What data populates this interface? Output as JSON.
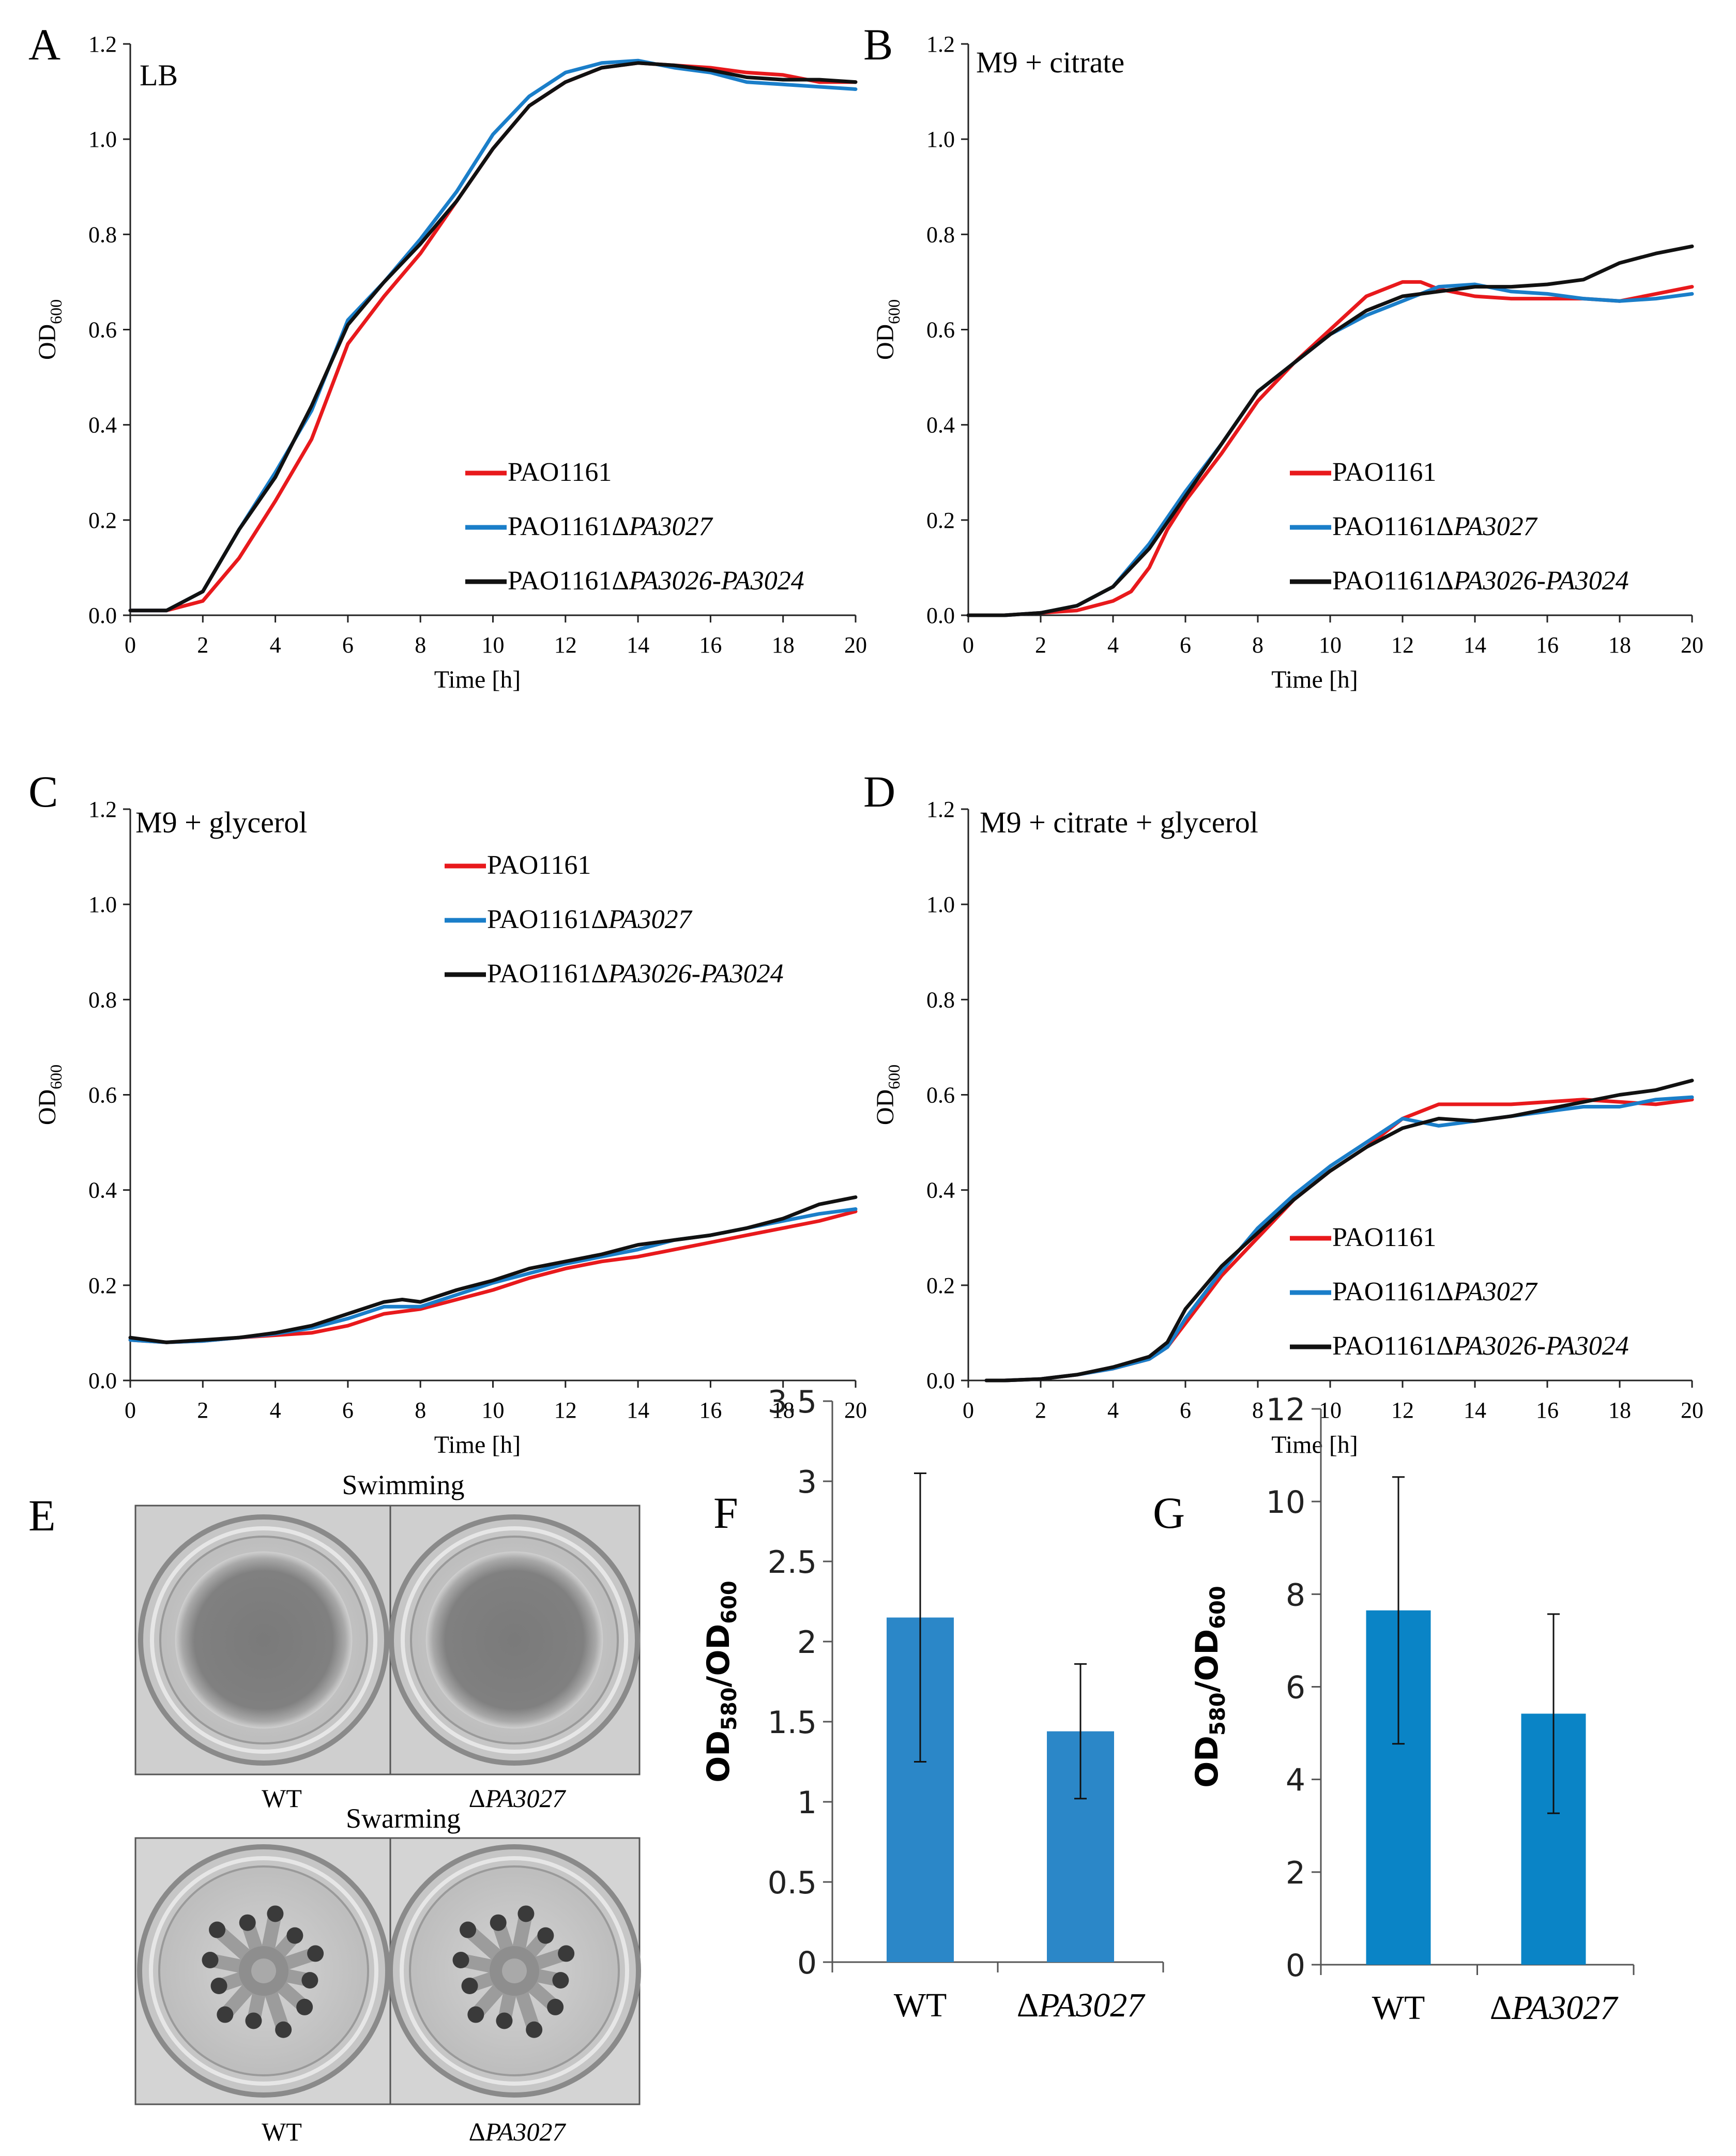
{
  "chart_data": [
    {
      "panel": "A",
      "type": "line",
      "title": "LB",
      "xlabel": "Time [h]",
      "ylabel": "OD",
      "ylabel_sub": "600",
      "xlim": [
        0,
        20
      ],
      "ylim": [
        0,
        1.2
      ],
      "xticks": [
        0,
        2,
        4,
        6,
        8,
        10,
        12,
        14,
        16,
        18,
        20
      ],
      "yticks": [
        0,
        0.2,
        0.4,
        0.6,
        0.8,
        1.0,
        1.2
      ],
      "yticklabels": [
        "0.0",
        "0.2",
        "0.4",
        "0.6",
        "0.8",
        "1.0",
        "1.2"
      ],
      "legend": "bottom-right",
      "series": [
        {
          "name": "PAO1161",
          "suffix": "",
          "color": "#e8191c",
          "x": [
            0,
            1,
            2,
            3,
            4,
            5,
            6,
            7,
            8,
            9,
            10,
            11,
            12,
            13,
            14,
            15,
            16,
            17,
            18,
            19,
            20
          ],
          "y": [
            0.01,
            0.01,
            0.03,
            0.12,
            0.24,
            0.37,
            0.57,
            0.67,
            0.76,
            0.87,
            0.98,
            1.07,
            1.12,
            1.15,
            1.16,
            1.155,
            1.15,
            1.14,
            1.135,
            1.12,
            1.12
          ]
        },
        {
          "name": "PAO1161Δ",
          "suffix": "PA3027",
          "color": "#1a7ec9",
          "x": [
            0,
            1,
            2,
            3,
            4,
            5,
            6,
            7,
            8,
            9,
            10,
            11,
            12,
            13,
            14,
            15,
            16,
            17,
            18,
            19,
            20
          ],
          "y": [
            0.01,
            0.01,
            0.05,
            0.18,
            0.3,
            0.43,
            0.62,
            0.7,
            0.79,
            0.89,
            1.01,
            1.09,
            1.14,
            1.16,
            1.165,
            1.15,
            1.14,
            1.12,
            1.115,
            1.11,
            1.105
          ]
        },
        {
          "name": "PAO1161Δ",
          "suffix": "PA3026-PA3024",
          "color": "#111111",
          "x": [
            0,
            1,
            2,
            3,
            4,
            5,
            6,
            7,
            8,
            9,
            10,
            11,
            12,
            13,
            14,
            15,
            16,
            17,
            18,
            19,
            20
          ],
          "y": [
            0.01,
            0.01,
            0.05,
            0.18,
            0.29,
            0.44,
            0.61,
            0.7,
            0.78,
            0.87,
            0.98,
            1.07,
            1.12,
            1.15,
            1.16,
            1.155,
            1.145,
            1.13,
            1.125,
            1.125,
            1.12
          ]
        }
      ]
    },
    {
      "panel": "B",
      "type": "line",
      "title": "M9 + citrate",
      "xlabel": "Time [h]",
      "ylabel": "OD",
      "ylabel_sub": "600",
      "xlim": [
        0,
        20
      ],
      "ylim": [
        0,
        1.2
      ],
      "xticks": [
        0,
        2,
        4,
        6,
        8,
        10,
        12,
        14,
        16,
        18,
        20
      ],
      "yticks": [
        0,
        0.2,
        0.4,
        0.6,
        0.8,
        1.0,
        1.2
      ],
      "yticklabels": [
        "0.0",
        "0.2",
        "0.4",
        "0.6",
        "0.8",
        "1.0",
        "1.2"
      ],
      "legend": "bottom-right",
      "series": [
        {
          "name": "PAO1161",
          "suffix": "",
          "color": "#e8191c",
          "x": [
            0,
            1,
            2,
            3,
            4,
            4.5,
            5,
            5.5,
            6,
            7,
            8,
            9,
            10,
            11,
            12,
            12.5,
            13,
            14,
            15,
            16,
            17,
            18,
            19,
            20
          ],
          "y": [
            0.0,
            0.0,
            0.005,
            0.01,
            0.03,
            0.05,
            0.1,
            0.18,
            0.24,
            0.34,
            0.45,
            0.53,
            0.6,
            0.67,
            0.7,
            0.7,
            0.685,
            0.67,
            0.665,
            0.665,
            0.665,
            0.66,
            0.675,
            0.69
          ]
        },
        {
          "name": "PAO1161Δ",
          "suffix": "PA3027",
          "color": "#1a7ec9",
          "x": [
            0,
            1,
            2,
            3,
            4,
            5,
            6,
            7,
            8,
            9,
            10,
            11,
            12,
            13,
            14,
            15,
            16,
            17,
            18,
            19,
            20
          ],
          "y": [
            0.0,
            0.0,
            0.005,
            0.02,
            0.06,
            0.15,
            0.26,
            0.36,
            0.47,
            0.53,
            0.59,
            0.63,
            0.66,
            0.69,
            0.695,
            0.68,
            0.675,
            0.665,
            0.66,
            0.665,
            0.675
          ]
        },
        {
          "name": "PAO1161Δ",
          "suffix": "PA3026-PA3024",
          "color": "#111111",
          "x": [
            0,
            1,
            2,
            3,
            4,
            5,
            6,
            7,
            8,
            9,
            10,
            11,
            12,
            13,
            14,
            15,
            16,
            17,
            18,
            19,
            20
          ],
          "y": [
            0.0,
            0.0,
            0.005,
            0.02,
            0.06,
            0.14,
            0.25,
            0.36,
            0.47,
            0.53,
            0.59,
            0.64,
            0.67,
            0.68,
            0.69,
            0.69,
            0.695,
            0.705,
            0.74,
            0.76,
            0.775
          ]
        }
      ]
    },
    {
      "panel": "C",
      "type": "line",
      "title": "M9 + glycerol",
      "xlabel": "Time [h]",
      "ylabel": "OD",
      "ylabel_sub": "600",
      "xlim": [
        0,
        20
      ],
      "ylim": [
        0,
        1.2
      ],
      "xticks": [
        0,
        2,
        4,
        6,
        8,
        10,
        12,
        14,
        16,
        18,
        20
      ],
      "yticks": [
        0,
        0.2,
        0.4,
        0.6,
        0.8,
        1.0,
        1.2
      ],
      "yticklabels": [
        "0.0",
        "0.2",
        "0.4",
        "0.6",
        "0.8",
        "1.0",
        "1.2"
      ],
      "legend": "top-right",
      "series": [
        {
          "name": "PAO1161",
          "suffix": "",
          "color": "#e8191c",
          "x": [
            0,
            1,
            2,
            3,
            4,
            5,
            6,
            7,
            8,
            9,
            10,
            11,
            12,
            13,
            14,
            15,
            16,
            17,
            18,
            19,
            20
          ],
          "y": [
            0.085,
            0.08,
            0.083,
            0.09,
            0.095,
            0.1,
            0.115,
            0.14,
            0.15,
            0.17,
            0.19,
            0.215,
            0.235,
            0.25,
            0.26,
            0.275,
            0.29,
            0.305,
            0.32,
            0.335,
            0.355
          ]
        },
        {
          "name": "PAO1161Δ",
          "suffix": "PA3027",
          "color": "#1a7ec9",
          "x": [
            0,
            1,
            2,
            3,
            4,
            5,
            6,
            7,
            8,
            9,
            10,
            11,
            12,
            13,
            14,
            15,
            16,
            17,
            18,
            19,
            20
          ],
          "y": [
            0.085,
            0.08,
            0.083,
            0.09,
            0.098,
            0.11,
            0.13,
            0.155,
            0.155,
            0.18,
            0.205,
            0.225,
            0.245,
            0.26,
            0.275,
            0.295,
            0.305,
            0.32,
            0.335,
            0.35,
            0.36
          ]
        },
        {
          "name": "PAO1161Δ",
          "suffix": "PA3026-PA3024",
          "color": "#111111",
          "x": [
            0,
            1,
            2,
            3,
            4,
            5,
            6,
            7,
            7.5,
            8,
            9,
            10,
            11,
            12,
            13,
            14,
            15,
            16,
            17,
            18,
            19,
            20
          ],
          "y": [
            0.09,
            0.08,
            0.085,
            0.09,
            0.1,
            0.115,
            0.14,
            0.165,
            0.17,
            0.165,
            0.19,
            0.21,
            0.235,
            0.25,
            0.265,
            0.285,
            0.295,
            0.305,
            0.32,
            0.34,
            0.37,
            0.385
          ]
        }
      ]
    },
    {
      "panel": "D",
      "type": "line",
      "title": "M9 + citrate + glycerol",
      "xlabel": "Time [h]",
      "ylabel": "OD",
      "ylabel_sub": "600",
      "xlim": [
        0,
        20
      ],
      "ylim": [
        0,
        1.2
      ],
      "xticks": [
        0,
        2,
        4,
        6,
        8,
        10,
        12,
        14,
        16,
        18,
        20
      ],
      "yticks": [
        0,
        0.2,
        0.4,
        0.6,
        0.8,
        1.0,
        1.2
      ],
      "yticklabels": [
        "0.0",
        "0.2",
        "0.4",
        "0.6",
        "0.8",
        "1.0",
        "1.2"
      ],
      "legend": "bottom-right",
      "series": [
        {
          "name": "PAO1161",
          "suffix": "",
          "color": "#e8191c",
          "x": [
            0.5,
            1,
            2,
            3,
            4,
            5,
            5.5,
            6,
            7,
            8,
            9,
            10,
            11,
            12,
            13,
            14,
            15,
            16,
            17,
            18,
            19,
            20
          ],
          "y": [
            0.0,
            0.0,
            0.003,
            0.012,
            0.025,
            0.045,
            0.07,
            0.12,
            0.22,
            0.3,
            0.38,
            0.44,
            0.49,
            0.55,
            0.58,
            0.58,
            0.58,
            0.585,
            0.59,
            0.585,
            0.58,
            0.59
          ]
        },
        {
          "name": "PAO1161Δ",
          "suffix": "PA3027",
          "color": "#1a7ec9",
          "x": [
            0.5,
            1,
            2,
            3,
            4,
            5,
            5.5,
            6,
            7,
            8,
            9,
            10,
            11,
            12,
            13,
            14,
            15,
            16,
            17,
            18,
            19,
            20
          ],
          "y": [
            0.0,
            0.0,
            0.003,
            0.012,
            0.025,
            0.045,
            0.07,
            0.13,
            0.23,
            0.32,
            0.39,
            0.45,
            0.5,
            0.55,
            0.535,
            0.545,
            0.555,
            0.565,
            0.575,
            0.575,
            0.59,
            0.595
          ]
        },
        {
          "name": "PAO1161Δ",
          "suffix": "PA3026-PA3024",
          "color": "#111111",
          "x": [
            0.5,
            1,
            2,
            3,
            4,
            5,
            5.5,
            6,
            7,
            8,
            9,
            10,
            11,
            12,
            13,
            14,
            15,
            16,
            17,
            18,
            19,
            20
          ],
          "y": [
            0.0,
            0.0,
            0.003,
            0.012,
            0.028,
            0.05,
            0.08,
            0.15,
            0.24,
            0.31,
            0.38,
            0.44,
            0.49,
            0.53,
            0.55,
            0.545,
            0.555,
            0.57,
            0.585,
            0.6,
            0.61,
            0.63
          ]
        }
      ]
    },
    {
      "panel": "F",
      "type": "bar",
      "ylabel": "OD",
      "ylabel_sub1": "580",
      "ylabel_sub2": "600",
      "categories": [
        "WT",
        "ΔPA3027"
      ],
      "category_display": [
        {
          "prefix": "",
          "italic": "WT"
        },
        {
          "prefix": "Δ",
          "italic": "PA3027"
        }
      ],
      "values": [
        2.15,
        1.44
      ],
      "errors": [
        0.9,
        0.42
      ],
      "ylim": [
        0,
        3.5
      ],
      "yticks": [
        0,
        0.5,
        1,
        1.5,
        2,
        2.5,
        3,
        3.5
      ],
      "yticklabels": [
        "0",
        "0.5",
        "1",
        "1.5",
        "2",
        "2.5",
        "3",
        "3.5"
      ],
      "bar_color": "#2b87c8"
    },
    {
      "panel": "G",
      "type": "bar",
      "ylabel": "OD",
      "ylabel_sub1": "580",
      "ylabel_sub2": "600",
      "categories": [
        "WT",
        "ΔPA3027"
      ],
      "category_display": [
        {
          "prefix": "",
          "italic": "WT"
        },
        {
          "prefix": "Δ",
          "italic": "PA3027"
        }
      ],
      "values": [
        7.65,
        5.42
      ],
      "errors": [
        2.88,
        2.15
      ],
      "ylim": [
        0,
        12
      ],
      "yticks": [
        0,
        2,
        4,
        6,
        8,
        10,
        12
      ],
      "yticklabels": [
        "0",
        "2",
        "4",
        "6",
        "8",
        "10",
        "12"
      ],
      "bar_color": "#0a84c6"
    }
  ],
  "panel_e": {
    "letter": "E",
    "swimming_title": "Swimming",
    "swarming_title": "Swarming",
    "wt_label": "WT",
    "mutant_prefix": "Δ",
    "mutant_label": "PA3027"
  },
  "panel_letters": [
    "A",
    "B",
    "C",
    "D",
    "E",
    "F",
    "G"
  ]
}
